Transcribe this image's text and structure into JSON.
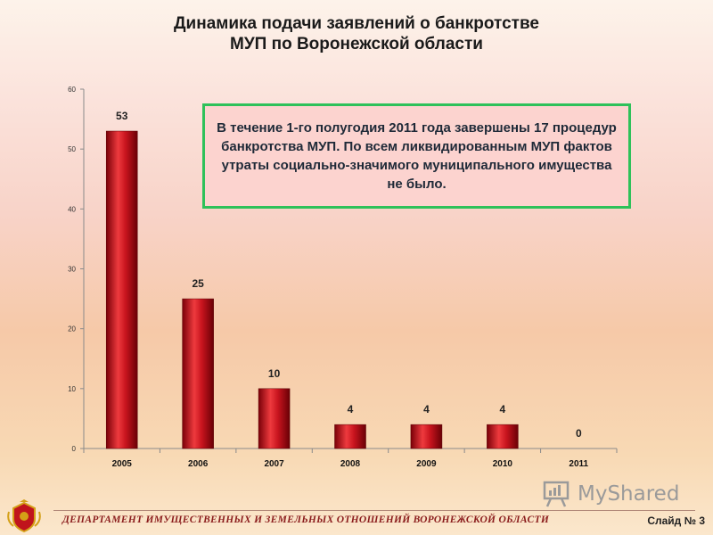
{
  "slide": {
    "title_line1": "Динамика подачи заявлений о банкротстве",
    "title_line2": "МУП по Воронежской области",
    "footer": "ДЕПАРТАМЕНТ ИМУЩЕСТВЕННЫХ И ЗЕМЕЛЬНЫХ ОТНОШЕНИЙ ВОРОНЕЖСКОЙ ОБЛАСТИ",
    "slide_number": "Слайд № 3",
    "watermark": "MyShared"
  },
  "callout": {
    "text": "В течение 1-го полугодия 2011 года завершены 17 процедур банкротства МУП. По всем ликвидированным МУП фактов утраты социально-значимого муниципального имущества не было."
  },
  "colors": {
    "bar": "#b8101a",
    "bar_highlight": "#ee3a3e",
    "callout_border": "#2ec15a",
    "callout_fill": "#fcd3cf"
  },
  "chart_data": {
    "type": "bar",
    "categories": [
      "2005",
      "2006",
      "2007",
      "2008",
      "2009",
      "2010",
      "2011"
    ],
    "values": [
      53,
      25,
      10,
      4,
      4,
      4,
      0
    ],
    "data_labels": [
      "53",
      "25",
      "10",
      "4",
      "4",
      "4",
      "0"
    ],
    "yticks": [
      "0",
      "10",
      "20",
      "30",
      "40",
      "50",
      "60"
    ],
    "ylim": [
      0,
      60
    ],
    "title": "",
    "xlabel": "",
    "ylabel": "",
    "grid": false,
    "legend": "none"
  }
}
